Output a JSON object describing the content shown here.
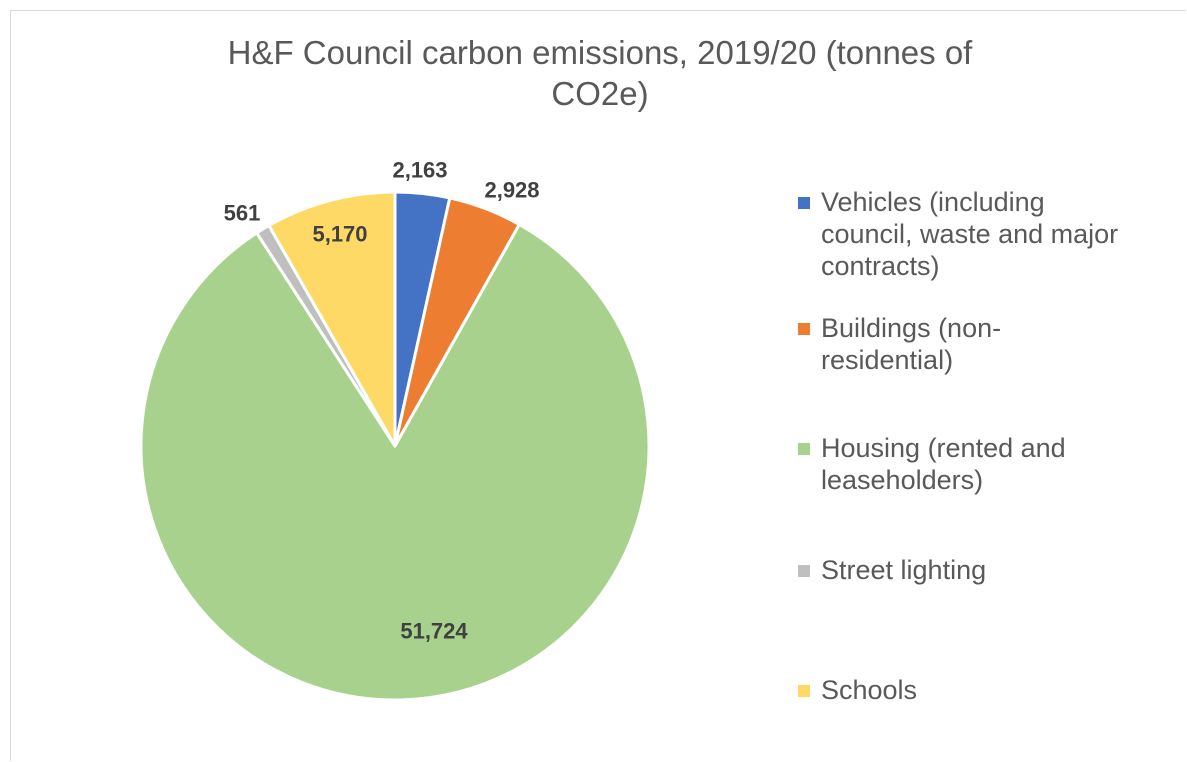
{
  "chart_data": {
    "type": "pie",
    "title": "H&F Council carbon emissions, 2019/20 (tonnes of CO2e)",
    "slices": [
      {
        "label": "Vehicles (including council, waste and major contracts)",
        "value": 2163,
        "display": "2,163",
        "color": "#4472c4"
      },
      {
        "label": "Buildings (non-residential)",
        "value": 2928,
        "display": "2,928",
        "color": "#ed7d31"
      },
      {
        "label": "Housing (rented and leaseholders)",
        "value": 51724,
        "display": "51,724",
        "color": "#a9d18e"
      },
      {
        "label": "Street lighting",
        "value": 561,
        "display": "561",
        "color": "#bfbfbf"
      },
      {
        "label": "Schools",
        "value": 5170,
        "display": "5,170",
        "color": "#ffd966"
      }
    ],
    "legend_position": "right"
  }
}
